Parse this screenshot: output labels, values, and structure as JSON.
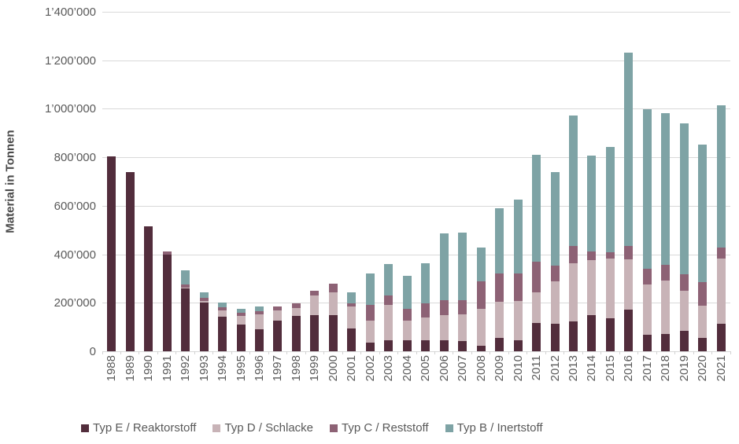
{
  "chart_data": {
    "type": "bar",
    "stacked": true,
    "title": "",
    "ylabel": "Material in Tonnen",
    "xlabel": "",
    "grid": true,
    "legend_position": "bottom",
    "ylim": [
      0,
      1400000
    ],
    "ytick_step": 200000,
    "ytick_labels": [
      "0",
      "200’000",
      "400’000",
      "600’000",
      "800’000",
      "1’000’000",
      "1’200’000",
      "1’400’000"
    ],
    "categories": [
      "1988",
      "1989",
      "1990",
      "1991",
      "1992",
      "1993",
      "1994",
      "1995",
      "1996",
      "1997",
      "1998",
      "1999",
      "2000",
      "2001",
      "2002",
      "2003",
      "2004",
      "2005",
      "2006",
      "2007",
      "2008",
      "2009",
      "2010",
      "2011",
      "2012",
      "2013",
      "2014",
      "2015",
      "2016",
      "2017",
      "2018",
      "2019",
      "2020",
      "2021"
    ],
    "series": [
      {
        "name": "Typ E / Reaktorstoff",
        "color": "#522d3c",
        "values": [
          805000,
          740000,
          516000,
          399000,
          258000,
          202000,
          143000,
          110000,
          92000,
          128000,
          145000,
          148000,
          150000,
          94000,
          37000,
          47000,
          46000,
          45000,
          45000,
          43000,
          24000,
          54000,
          47000,
          118000,
          113000,
          124000,
          148000,
          137000,
          173000,
          67000,
          70000,
          83000,
          54000,
          114000
        ]
      },
      {
        "name": "Typ D / Schlacke",
        "color": "#c8b3b7",
        "values": [
          0,
          0,
          0,
          0,
          5000,
          4000,
          27000,
          37000,
          61000,
          40000,
          33000,
          81000,
          92000,
          90000,
          89000,
          143000,
          82000,
          94000,
          105000,
          108000,
          150000,
          150000,
          160000,
          124000,
          174000,
          238000,
          228000,
          244000,
          207000,
          209000,
          222000,
          166000,
          135000,
          270000
        ]
      },
      {
        "name": "Typ C / Reststoff",
        "color": "#8d6275",
        "values": [
          0,
          0,
          0,
          14000,
          12000,
          13000,
          12000,
          12000,
          11000,
          18000,
          19000,
          22000,
          37000,
          15000,
          66000,
          41000,
          46000,
          60000,
          62000,
          61000,
          114000,
          118000,
          113000,
          129000,
          65000,
          72000,
          37000,
          27000,
          54000,
          65000,
          65000,
          70000,
          95000,
          45000
        ]
      },
      {
        "name": "Typ B / Inertstoff",
        "color": "#7ea3a5",
        "values": [
          0,
          0,
          0,
          0,
          60000,
          24000,
          20000,
          16000,
          22000,
          0,
          0,
          0,
          0,
          45000,
          128000,
          129000,
          136000,
          165000,
          274000,
          279000,
          140000,
          268000,
          307000,
          440000,
          386000,
          539000,
          393000,
          435000,
          799000,
          656000,
          624000,
          622000,
          568000,
          587000
        ]
      }
    ],
    "colors": {
      "gridline": "#d9d9d9",
      "axis_text": "#595959",
      "background": "#ffffff"
    }
  }
}
